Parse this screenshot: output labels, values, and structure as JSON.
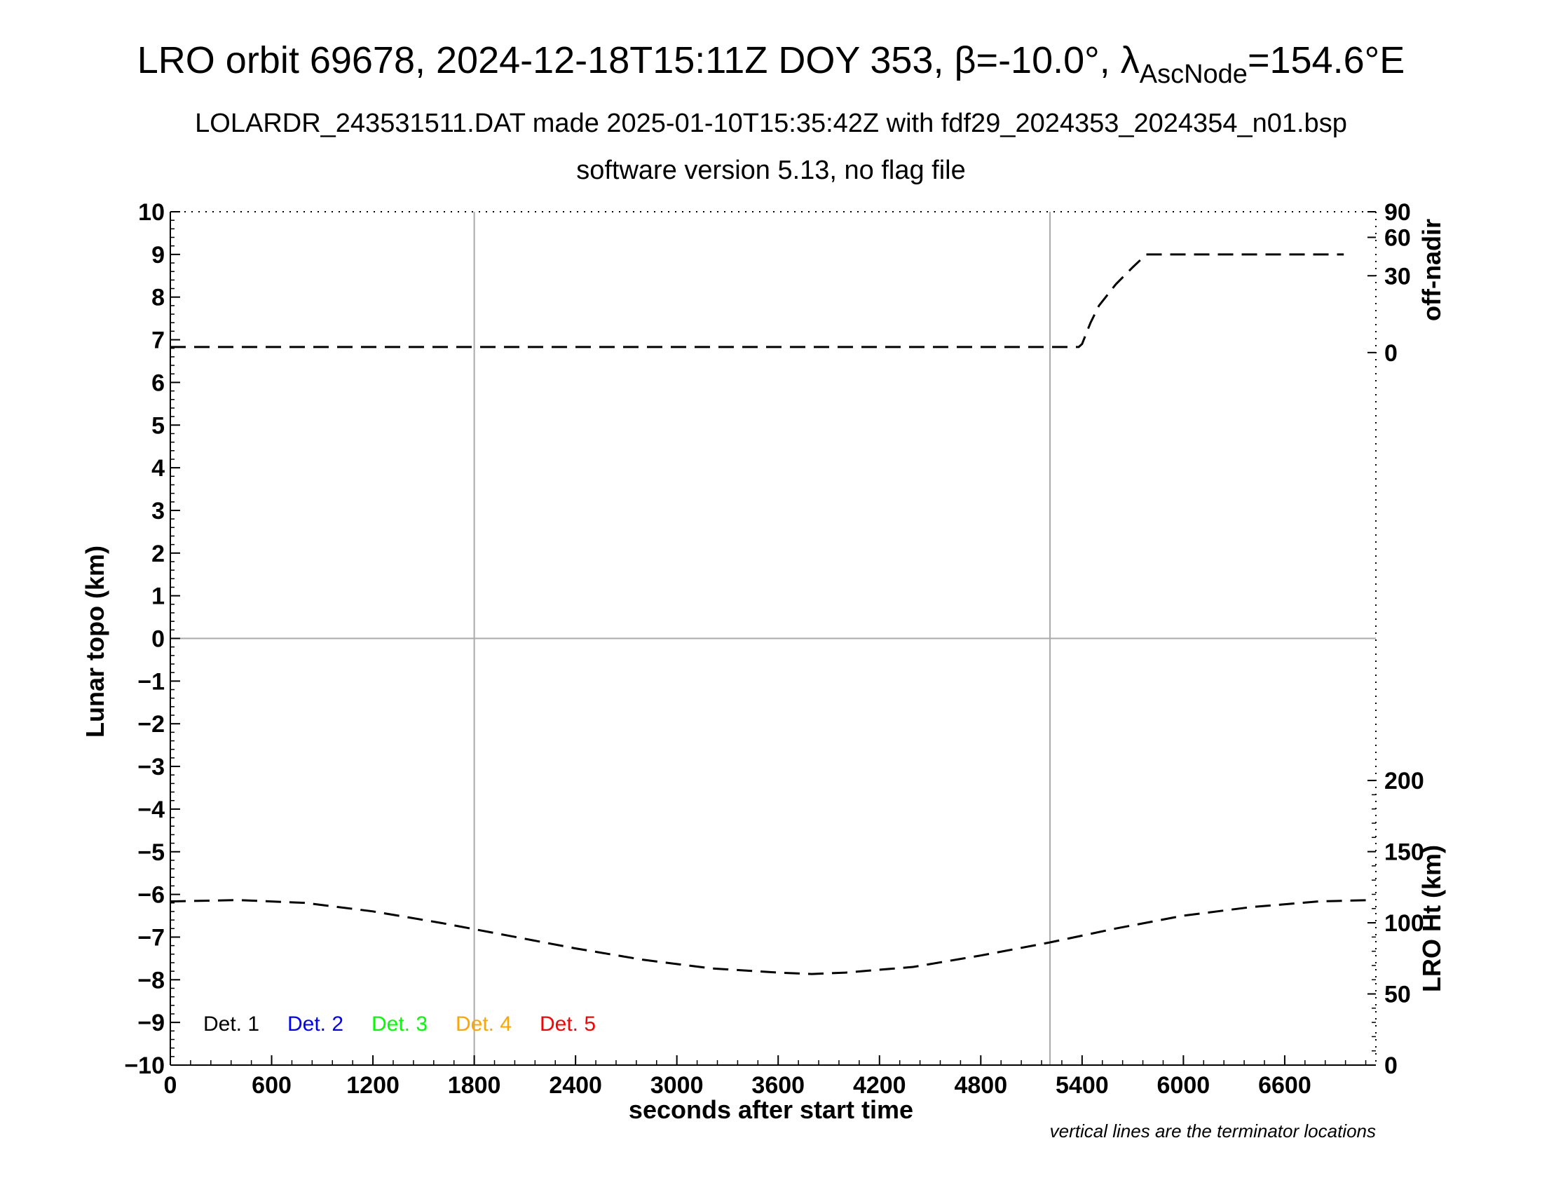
{
  "header": {
    "title_main": "LRO orbit 69678, 2024-12-18T15:11Z DOY 353, β=-10.0°, λ",
    "title_sub": "AscNode",
    "title_end": "=154.6°E",
    "subtitle1": "LOLARDR_243531511.DAT made 2025-01-10T15:35:42Z with fdf29_2024353_2024354_n01.bsp",
    "subtitle2": "software version 5.13, no flag file"
  },
  "footnote": "vertical lines are the terminator locations",
  "colors": {
    "det1": "#000000",
    "det2": "#0000ff",
    "det3": "#00ff00",
    "det4": "#ffa500",
    "det5": "#ff0000",
    "grid": "#aaaaaa"
  },
  "chart_data": {
    "type": "line",
    "xlabel": "seconds after start time",
    "ylabel": "Lunar topo (km)",
    "xlim": [
      0,
      7140
    ],
    "ylim": [
      -10,
      10
    ],
    "x_ticks": [
      "0",
      "600",
      "1200",
      "1800",
      "2400",
      "3000",
      "3600",
      "4200",
      "4800",
      "5400",
      "6000",
      "6600"
    ],
    "y_ticks": [
      "10",
      "9",
      "8",
      "7",
      "6",
      "5",
      "4",
      "3",
      "2",
      "1",
      "0",
      "−1",
      "−2",
      "−3",
      "−4",
      "−5",
      "−6",
      "−7",
      "−8",
      "−9",
      "−10"
    ],
    "terminator_x": [
      1800,
      5210
    ],
    "offnadir_axis": {
      "label": "off-nadir",
      "ticks": [
        "90",
        "60",
        "30",
        "0"
      ]
    },
    "lroht_axis": {
      "label": "LRO Ht (km)",
      "ticks": [
        "200",
        "150",
        "100",
        "50",
        "0"
      ],
      "range": [
        0,
        200
      ]
    },
    "legend": [
      "Det. 1",
      "Det. 2",
      "Det. 3",
      "Det. 4",
      "Det. 5"
    ],
    "series": [
      {
        "name": "off-nadir",
        "style": "dashed",
        "x": [
          0,
          1000,
          2000,
          3000,
          4000,
          5000,
          5380,
          5400,
          5450,
          5500,
          5600,
          5700,
          5780,
          6000,
          6500,
          6950
        ],
        "values": [
          6.83,
          6.83,
          6.83,
          6.83,
          6.83,
          6.83,
          6.83,
          6.9,
          7.4,
          7.8,
          8.3,
          8.7,
          9.0,
          9.0,
          9.0,
          9.0
        ]
      },
      {
        "name": "LRO Ht",
        "style": "dashed",
        "x": [
          0,
          400,
          800,
          1200,
          1600,
          2000,
          2400,
          2800,
          3200,
          3600,
          3800,
          4000,
          4400,
          4800,
          5200,
          5600,
          6000,
          6400,
          6800,
          7120
        ],
        "values": [
          115,
          116,
          114,
          108,
          100,
          91,
          82,
          74,
          68,
          65,
          64,
          65,
          69,
          77,
          86,
          96,
          105,
          111,
          115,
          116
        ]
      }
    ]
  }
}
